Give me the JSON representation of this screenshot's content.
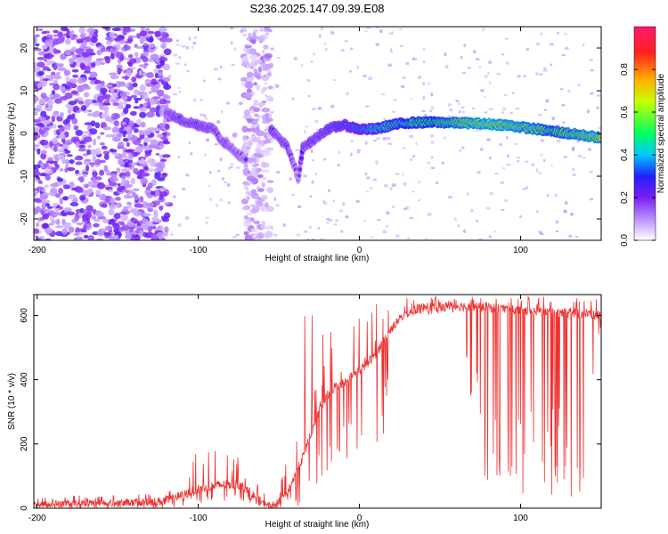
{
  "figure": {
    "title": "S236.2025.147.09.39.E08"
  },
  "chart_data": [
    {
      "type": "heatmap",
      "xlabel": "Height of straight line (km)",
      "ylabel": "Frequency (Hz)",
      "xlim": [
        -202,
        150
      ],
      "ylim": [
        -25,
        25
      ],
      "x_ticks": [
        -200,
        -100,
        0,
        100
      ],
      "y_ticks": [
        -20,
        -10,
        0,
        10,
        20
      ],
      "colorbar": {
        "label": "Normalized spectral amplitude",
        "range": [
          0,
          1
        ],
        "ticks": [
          0.0,
          0.2,
          0.4,
          0.6,
          0.8
        ],
        "tick_labels": [
          "0.0",
          "0.2",
          "0.4",
          "0.6",
          "0.8"
        ],
        "colors": [
          "#ffffff",
          "#c8a6ff",
          "#7a1ff0",
          "#2020ff",
          "#00c8ff",
          "#00ff60",
          "#c8ff00",
          "#ffb000",
          "#ff2020",
          "#ff1a6e"
        ]
      },
      "ridge": {
        "x": [
          -120,
          -110,
          -100,
          -90,
          -85,
          -80,
          -75,
          -70,
          -60,
          -55,
          -50,
          -45,
          -40,
          -38,
          -35,
          -30,
          -20,
          -10,
          0,
          10,
          20,
          30,
          40,
          50,
          60,
          70,
          80,
          90,
          100,
          110,
          120,
          130,
          140,
          150
        ],
        "y": [
          5,
          3,
          2,
          1,
          -2,
          -3,
          -5,
          -6,
          null,
          1,
          -1,
          -3,
          -8,
          -11,
          -3,
          -2,
          1,
          2,
          1,
          1,
          2,
          2.5,
          2.6,
          2.6,
          2.5,
          2.4,
          2.2,
          2,
          1.5,
          1,
          0.5,
          0,
          -0.5,
          -1
        ],
        "amplitude": [
          0.25,
          0.3,
          0.3,
          0.28,
          0.25,
          0.25,
          0.22,
          0.2,
          0,
          0.28,
          0.28,
          0.28,
          0.2,
          0.15,
          0.3,
          0.3,
          0.35,
          0.4,
          0.45,
          0.55,
          0.6,
          0.62,
          0.65,
          0.7,
          0.75,
          0.8,
          0.82,
          0.8,
          0.78,
          0.75,
          0.7,
          0.75,
          0.78,
          0.8
        ]
      },
      "noise_regions": [
        {
          "x": [
            -202,
            -118
          ],
          "y": [
            -25,
            25
          ],
          "amplitude": 0.15
        },
        {
          "x": [
            -72,
            -55
          ],
          "y": [
            -25,
            25
          ],
          "amplitude": 0.08
        }
      ]
    },
    {
      "type": "line",
      "xlabel": "Height of straight line (km)",
      "ylabel": "SNR (10 * v/v)",
      "xlim": [
        -202,
        150
      ],
      "ylim": [
        0,
        665
      ],
      "x_ticks": [
        -200,
        -100,
        0,
        100
      ],
      "y_ticks": [
        0,
        200,
        400,
        600
      ],
      "color": "#f03030",
      "series": [
        {
          "x": [
            -202,
            -180,
            -160,
            -140,
            -120,
            -110,
            -100,
            -90,
            -80,
            -75,
            -70,
            -65,
            -60,
            -55,
            -50,
            -45,
            -40,
            -35,
            -30,
            -25,
            -20,
            -15,
            -10,
            -5,
            0,
            5,
            10,
            15,
            20,
            25,
            30,
            40,
            60,
            80,
            100,
            120,
            140,
            150
          ],
          "y": [
            12,
            15,
            16,
            18,
            22,
            40,
            60,
            70,
            75,
            72,
            60,
            35,
            15,
            8,
            15,
            50,
            100,
            160,
            230,
            300,
            350,
            380,
            390,
            410,
            430,
            450,
            480,
            520,
            560,
            590,
            610,
            625,
            630,
            625,
            615,
            610,
            605,
            600
          ],
          "upper": [
            35,
            40,
            40,
            45,
            60,
            110,
            180,
            200,
            230,
            190,
            150,
            90,
            50,
            40,
            60,
            150,
            250,
            600,
            650,
            640,
            600,
            520,
            560,
            600,
            630,
            600,
            640,
            640,
            640,
            650,
            655,
            660,
            660,
            660,
            660,
            660,
            660,
            650
          ],
          "lower": [
            0,
            0,
            0,
            0,
            0,
            5,
            10,
            15,
            20,
            25,
            20,
            10,
            0,
            0,
            0,
            0,
            5,
            10,
            20,
            40,
            60,
            100,
            150,
            150,
            160,
            170,
            180,
            200,
            560,
            590,
            600,
            600,
            610,
            30,
            30,
            20,
            10,
            580
          ]
        }
      ]
    }
  ]
}
